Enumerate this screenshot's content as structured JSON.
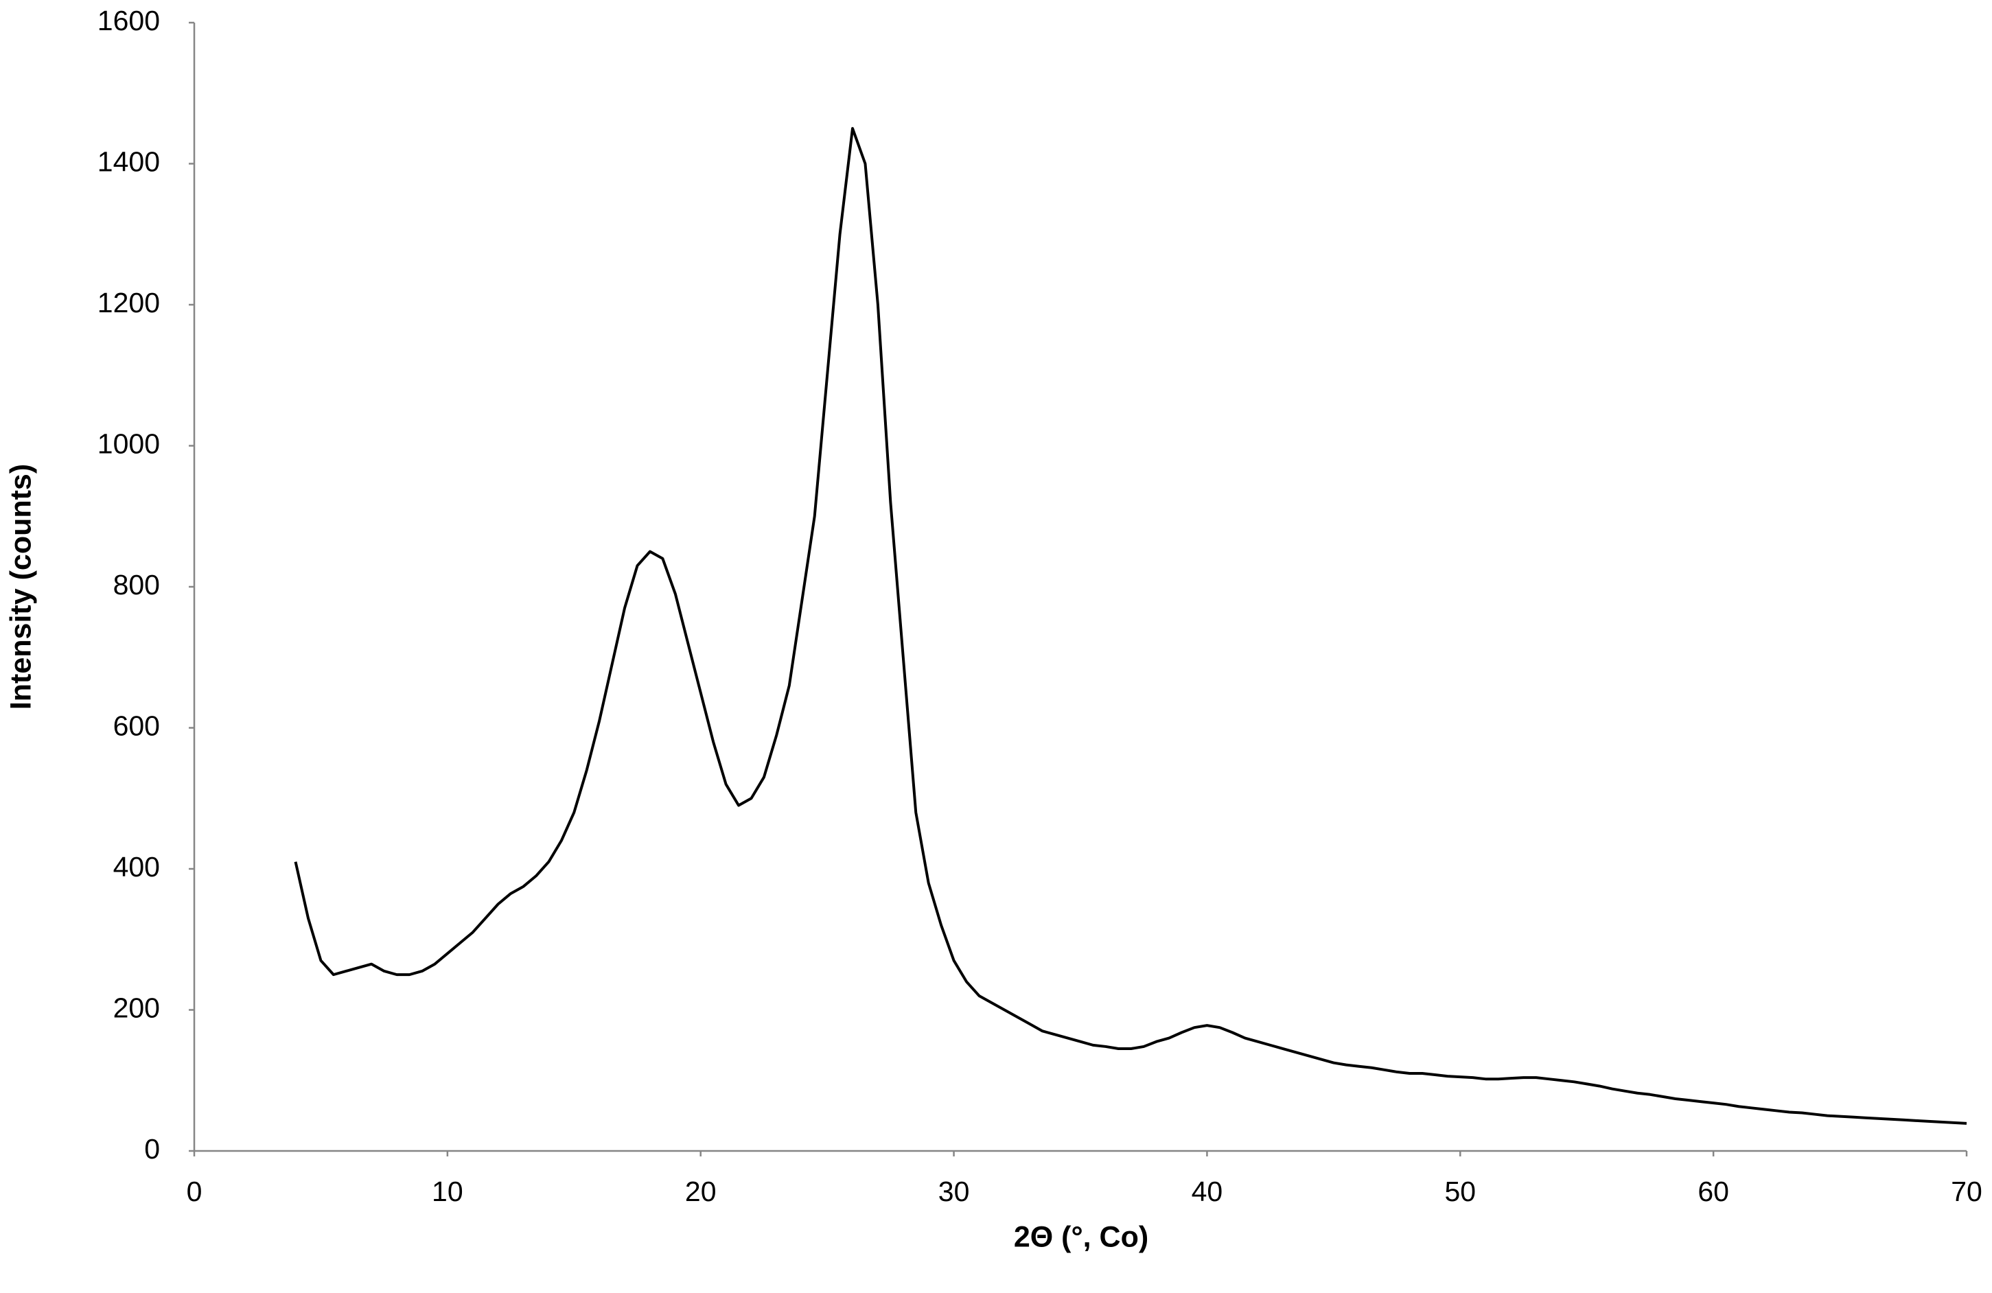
{
  "chart_data": {
    "type": "line",
    "xlabel": "2Θ (°, Co)",
    "ylabel": "Intensity (counts)",
    "x": [
      4,
      4.5,
      5,
      5.5,
      6,
      6.5,
      7,
      7.5,
      8,
      8.5,
      9,
      9.5,
      10,
      10.5,
      11,
      11.5,
      12,
      12.5,
      13,
      13.5,
      14,
      14.5,
      15,
      15.5,
      16,
      16.5,
      17,
      17.5,
      18,
      18.5,
      19,
      19.5,
      20,
      20.5,
      21,
      21.5,
      22,
      22.5,
      23,
      23.5,
      24,
      24.5,
      25,
      25.5,
      26,
      26.5,
      27,
      27.5,
      28,
      28.5,
      29,
      29.5,
      30,
      30.5,
      31,
      31.5,
      32,
      32.5,
      33,
      33.5,
      34,
      34.5,
      35,
      35.5,
      36,
      36.5,
      37,
      37.5,
      38,
      38.5,
      39,
      39.5,
      40,
      40.5,
      41,
      41.5,
      42,
      42.5,
      43,
      43.5,
      44,
      44.5,
      45,
      45.5,
      46,
      46.5,
      47,
      47.5,
      48,
      48.5,
      49,
      49.5,
      50,
      50.5,
      51,
      51.5,
      52,
      52.5,
      53,
      53.5,
      54,
      54.5,
      55,
      55.5,
      56,
      56.5,
      57,
      57.5,
      58,
      58.5,
      59,
      59.5,
      60,
      60.5,
      61,
      61.5,
      62,
      62.5,
      63,
      63.5,
      64,
      64.5,
      65,
      65.5,
      66,
      66.5,
      67,
      67.5,
      68,
      68.5,
      69,
      69.5,
      70
    ],
    "series": [
      {
        "color": "#000000",
        "values": [
          410,
          330,
          270,
          250,
          255,
          260,
          265,
          255,
          250,
          250,
          255,
          265,
          280,
          295,
          310,
          330,
          350,
          365,
          375,
          390,
          410,
          440,
          480,
          540,
          610,
          690,
          770,
          830,
          850,
          840,
          790,
          720,
          650,
          580,
          520,
          490,
          500,
          530,
          590,
          660,
          780,
          900,
          1100,
          1300,
          1450,
          1400,
          1200,
          920,
          700,
          480,
          380,
          320,
          270,
          240,
          220,
          210,
          200,
          190,
          180,
          170,
          165,
          160,
          155,
          150,
          148,
          145,
          145,
          148,
          155,
          160,
          168,
          175,
          178,
          175,
          168,
          160,
          155,
          150,
          145,
          140,
          135,
          130,
          125,
          122,
          120,
          118,
          115,
          112,
          110,
          110,
          108,
          106,
          105,
          104,
          102,
          102,
          103,
          104,
          104,
          102,
          100,
          98,
          95,
          92,
          88,
          85,
          82,
          80,
          77,
          74,
          72,
          70,
          68,
          66,
          63,
          61,
          59,
          57,
          55,
          54,
          52,
          50,
          49,
          48,
          47,
          46,
          45,
          44,
          43,
          42,
          41,
          40,
          39
        ]
      }
    ],
    "xlim": [
      0,
      70
    ],
    "xticks": [
      0,
      10,
      20,
      30,
      40,
      50,
      60,
      70
    ],
    "ylim": [
      0,
      1600
    ],
    "yticks": [
      0,
      200,
      400,
      600,
      800,
      1000,
      1200,
      1400,
      1600
    ],
    "axis_color": "#868686"
  }
}
